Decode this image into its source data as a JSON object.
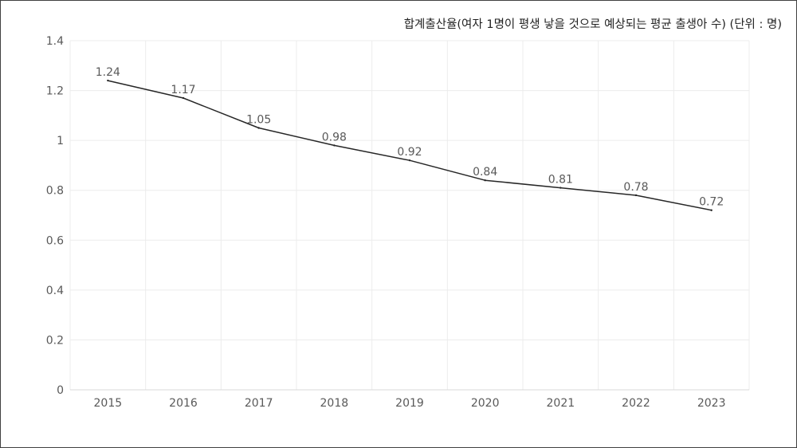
{
  "chart_data": {
    "type": "line",
    "title": "합계출산율(여자 1명이 평생 낳을 것으로 예상되는 평균 출생아 수) (단위 : 명)",
    "xlabel": "",
    "ylabel": "",
    "categories": [
      "2015",
      "2016",
      "2017",
      "2018",
      "2019",
      "2020",
      "2021",
      "2022",
      "2023"
    ],
    "series": [
      {
        "name": "합계출산율",
        "values": [
          1.24,
          1.17,
          1.05,
          0.98,
          0.92,
          0.84,
          0.81,
          0.78,
          0.72
        ]
      }
    ],
    "data_labels": [
      "1.24",
      "1.17",
      "1.05",
      "0.98",
      "0.92",
      "0.84",
      "0.81",
      "0.78",
      "0.72"
    ],
    "ylim": [
      0,
      1.4
    ],
    "yticks": [
      0,
      0.2,
      0.4,
      0.6,
      0.8,
      1,
      1.2,
      1.4
    ],
    "ytick_labels": [
      "0",
      "0.2",
      "0.4",
      "0.6",
      "0.8",
      "1",
      "1.2",
      "1.4"
    ],
    "grid": true,
    "legend": "none",
    "colors": {
      "line": "#262626",
      "grid": "#ececec",
      "text": "#595959"
    }
  }
}
